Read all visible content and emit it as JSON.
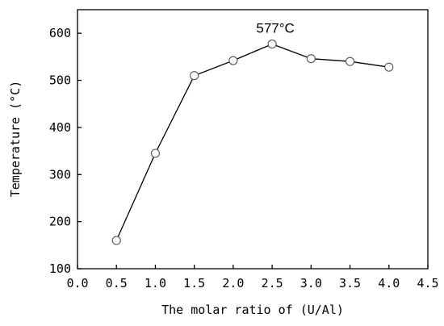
{
  "chart_data": {
    "type": "line",
    "title": "",
    "xlabel": "The molar ratio of (U/Al)",
    "ylabel": "Temperature (°C)",
    "xlim": [
      0.0,
      4.5
    ],
    "ylim": [
      100,
      650
    ],
    "x_ticks": [
      "0.0",
      "0.5",
      "1.0",
      "1.5",
      "2.0",
      "2.5",
      "3.0",
      "3.5",
      "4.0",
      "4.5"
    ],
    "y_ticks": [
      "100",
      "200",
      "300",
      "400",
      "500",
      "600"
    ],
    "grid": false,
    "legend": "none",
    "series": [
      {
        "x": [
          0.5,
          1.0,
          1.5,
          2.0,
          2.5,
          3.0,
          3.5,
          4.0
        ],
        "y": [
          160,
          345,
          510,
          542,
          577,
          546,
          540,
          528
        ]
      }
    ],
    "annotations": [
      {
        "text": "577°C",
        "x": 2.5,
        "y": 577
      }
    ],
    "colors": {
      "line": "#000000",
      "marker_fill": "#ffffff",
      "marker_edge": "#555555"
    }
  }
}
